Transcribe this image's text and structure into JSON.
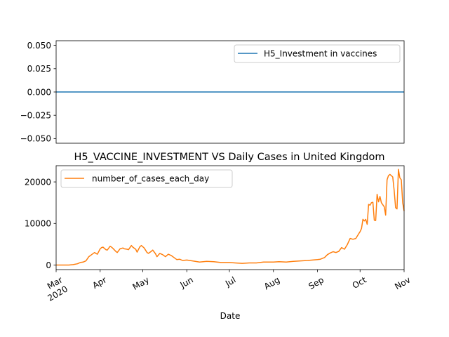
{
  "chart_data": [
    {
      "type": "line",
      "title": "",
      "xlabel": "",
      "ylabel": "",
      "ylim": [
        -0.055,
        0.055
      ],
      "yticks": [
        "−0.050",
        "−0.025",
        "0.000",
        "0.025",
        "0.050"
      ],
      "ytick_values": [
        -0.05,
        -0.025,
        0.0,
        0.025,
        0.05
      ],
      "legend_position": "upper right",
      "grid": false,
      "series": [
        {
          "name": "H5_Investment in vaccines",
          "color": "#1f77b4",
          "x": [
            "2020-03-01",
            "2020-11-01"
          ],
          "y": [
            0,
            0
          ]
        }
      ]
    },
    {
      "type": "line",
      "title": "H5_VACCINE_INVESTMENT VS Daily Cases in United Kingdom",
      "xlabel": "Date",
      "ylabel": "",
      "ylim": [
        -1100,
        23900
      ],
      "yticks": [
        "0",
        "10000",
        "20000"
      ],
      "ytick_values": [
        0,
        10000,
        20000
      ],
      "xticks": [
        "Mar\n2020",
        "Apr",
        "May",
        "Jun",
        "Jul",
        "Aug",
        "Sep",
        "Oct",
        "Nov"
      ],
      "legend_position": "upper left",
      "grid": false,
      "series": [
        {
          "name": "number_of_cases_each_day",
          "color": "#ff7f0e",
          "x": [
            "2020-03-01",
            "2020-03-05",
            "2020-03-10",
            "2020-03-13",
            "2020-03-16",
            "2020-03-18",
            "2020-03-20",
            "2020-03-22",
            "2020-03-24",
            "2020-03-26",
            "2020-03-28",
            "2020-03-30",
            "2020-04-01",
            "2020-04-02",
            "2020-04-03",
            "2020-04-05",
            "2020-04-06",
            "2020-04-08",
            "2020-04-09",
            "2020-04-10",
            "2020-04-12",
            "2020-04-13",
            "2020-04-15",
            "2020-04-17",
            "2020-04-18",
            "2020-04-20",
            "2020-04-21",
            "2020-04-23",
            "2020-04-24",
            "2020-04-26",
            "2020-04-27",
            "2020-04-29",
            "2020-04-30",
            "2020-05-02",
            "2020-05-04",
            "2020-05-05",
            "2020-05-07",
            "2020-05-08",
            "2020-05-10",
            "2020-05-11",
            "2020-05-13",
            "2020-05-15",
            "2020-05-17",
            "2020-05-19",
            "2020-05-21",
            "2020-05-23",
            "2020-05-25",
            "2020-05-27",
            "2020-05-29",
            "2020-06-01",
            "2020-06-05",
            "2020-06-10",
            "2020-06-15",
            "2020-06-20",
            "2020-06-25",
            "2020-07-01",
            "2020-07-05",
            "2020-07-10",
            "2020-07-15",
            "2020-07-20",
            "2020-07-25",
            "2020-08-01",
            "2020-08-05",
            "2020-08-10",
            "2020-08-15",
            "2020-08-20",
            "2020-08-25",
            "2020-09-01",
            "2020-09-03",
            "2020-09-06",
            "2020-09-08",
            "2020-09-10",
            "2020-09-12",
            "2020-09-14",
            "2020-09-16",
            "2020-09-18",
            "2020-09-20",
            "2020-09-22",
            "2020-09-24",
            "2020-09-26",
            "2020-09-28",
            "2020-09-30",
            "2020-10-01",
            "2020-10-02",
            "2020-10-03",
            "2020-10-04",
            "2020-10-05",
            "2020-10-06",
            "2020-10-07",
            "2020-10-08",
            "2020-10-09",
            "2020-10-10",
            "2020-10-11",
            "2020-10-12",
            "2020-10-13",
            "2020-10-14",
            "2020-10-15",
            "2020-10-16",
            "2020-10-17",
            "2020-10-18",
            "2020-10-19",
            "2020-10-20",
            "2020-10-21",
            "2020-10-22",
            "2020-10-23",
            "2020-10-24",
            "2020-10-25",
            "2020-10-26",
            "2020-10-27",
            "2020-10-28",
            "2020-10-29",
            "2020-10-30",
            "2020-10-31",
            "2020-11-01"
          ],
          "y": [
            0,
            0,
            0,
            100,
            300,
            600,
            700,
            1000,
            2000,
            2500,
            3000,
            2600,
            3900,
            4200,
            4300,
            3700,
            3600,
            4500,
            4300,
            4000,
            3300,
            3000,
            3900,
            4100,
            3900,
            3800,
            3700,
            4700,
            4300,
            3800,
            3100,
            4400,
            4700,
            4100,
            3000,
            2800,
            3300,
            3600,
            2700,
            2000,
            2800,
            2500,
            2000,
            2600,
            2300,
            1800,
            1300,
            1400,
            1100,
            1200,
            1000,
            700,
            900,
            800,
            600,
            600,
            500,
            400,
            500,
            500,
            700,
            700,
            800,
            700,
            900,
            1000,
            1100,
            1300,
            1400,
            1800,
            2500,
            2900,
            3200,
            3000,
            3300,
            4200,
            3800,
            4900,
            6400,
            6200,
            6400,
            7500,
            8000,
            8800,
            11000,
            10600,
            11000,
            9800,
            14600,
            14400,
            15000,
            15100,
            10800,
            10700,
            17000,
            15200,
            16500,
            15000,
            14500,
            14000,
            12000,
            20500,
            21500,
            21800,
            21500,
            21200,
            18000,
            13800,
            13500,
            23000,
            21000,
            20500,
            15000,
            13000
          ]
        }
      ]
    }
  ]
}
